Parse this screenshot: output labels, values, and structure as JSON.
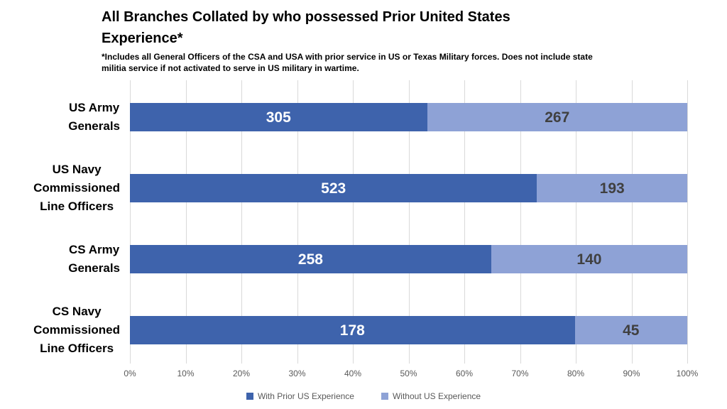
{
  "header": {
    "title_lines": [
      "All Branches Collated by who possessed Prior United States",
      "Experience*"
    ],
    "footnote_lines": [
      "*Includes all General Officers of the CSA and USA with prior service in US or Texas Military forces. Does not include state",
      "militia service if not activated to serve in US military in wartime."
    ]
  },
  "colors": {
    "background": "#FFFFFF",
    "title_text": "#000000",
    "gridline": "#D9D9D9",
    "axis_text": "#595959",
    "legend_text": "#595959",
    "series_with": "#3E63AC",
    "series_without": "#8EA2D6",
    "value_label_on_dark": "#FFFFFF",
    "value_label_on_light": "#404040"
  },
  "chart_data": {
    "type": "bar",
    "orientation": "horizontal",
    "stacked": true,
    "percent_stacked": true,
    "title": "All Branches Collated by who possessed Prior United States Experience*",
    "footnote": "*Includes all General Officers of the CSA and USA with prior service in US or Texas Military forces. Does not include state militia service if not activated to serve in US military in wartime.",
    "categories": [
      "US Army Generals",
      "US Navy Commissioned Line Officers",
      "CS Army Generals",
      "CS Navy Commissioned Line Officers"
    ],
    "category_lines": [
      [
        "US Army",
        "Generals"
      ],
      [
        "US Navy",
        "Commissioned",
        "Line Officers"
      ],
      [
        "CS Army",
        "Generals"
      ],
      [
        "CS Navy",
        "Commissioned",
        "Line Officers"
      ]
    ],
    "series": [
      {
        "name": "With Prior US Experience",
        "slug": "with-prior-us-experience",
        "values": [
          305,
          523,
          258,
          178
        ],
        "color": "#3E63AC",
        "label_color": "#FFFFFF"
      },
      {
        "name": "Without US Experience",
        "slug": "without-us-experience",
        "values": [
          267,
          193,
          140,
          45
        ],
        "color": "#8EA2D6",
        "label_color": "#404040"
      }
    ],
    "x_axis": {
      "min": 0,
      "max": 100,
      "unit": "%",
      "ticks": [
        "0%",
        "10%",
        "20%",
        "30%",
        "40%",
        "50%",
        "60%",
        "70%",
        "80%",
        "90%",
        "100%"
      ]
    },
    "gridlines": true,
    "legend_position": "bottom"
  }
}
